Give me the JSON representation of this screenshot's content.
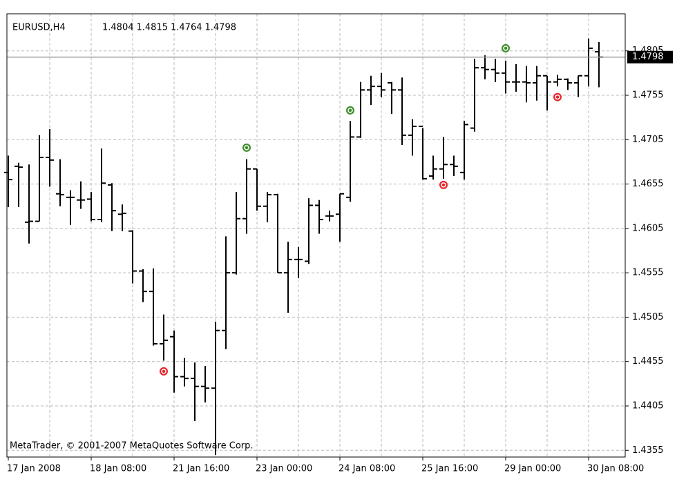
{
  "chart_data": {
    "type": "ohlc",
    "title": "EURUSD,H4",
    "annotation": "MetaTrader, © 2001-2007 MetaQuotes Software Corp.",
    "categories": [
      "17 Jan 2008",
      null,
      null,
      null,
      null,
      null,
      null,
      null,
      "18 Jan 08:00",
      null,
      null,
      null,
      null,
      null,
      null,
      null,
      "21 Jan 16:00",
      null,
      null,
      null,
      null,
      null,
      null,
      null,
      "23 Jan 00:00",
      null,
      null,
      null,
      null,
      null,
      null,
      null,
      "24 Jan 08:00",
      null,
      null,
      null,
      null,
      null,
      null,
      null,
      "25 Jan 16:00",
      null,
      null,
      null,
      null,
      null,
      null,
      null,
      "29 Jan 00:00",
      null,
      null,
      null,
      null,
      null,
      null,
      null,
      "30 Jan 08:00",
      null
    ],
    "open": [
      1.4668,
      1.4675,
      1.4612,
      1.4613,
      1.4685,
      1.4644,
      1.464,
      1.4637,
      1.4638,
      1.4615,
      1.4654,
      1.4621,
      1.4602,
      1.4557,
      1.4534,
      1.4475,
      1.4483,
      1.4438,
      1.4436,
      1.4427,
      1.4425,
      1.449,
      1.4555,
      1.4616,
      1.4672,
      1.463,
      1.4643,
      1.4555,
      1.457,
      1.4568,
      1.4631,
      1.4619,
      1.4621,
      1.464,
      1.4708,
      1.4761,
      1.4765,
      1.4769,
      1.4761,
      1.471,
      1.472,
      1.4664,
      1.4672,
      1.4677,
      1.4668,
      1.4718,
      1.4786,
      1.4784,
      1.478,
      1.477,
      1.477,
      1.4769,
      1.4777,
      1.477,
      1.4773,
      1.4769,
      1.4777,
      1.4804
    ],
    "high": [
      1.4687,
      1.4679,
      1.4677,
      1.471,
      1.4717,
      1.4683,
      1.4648,
      1.4658,
      1.4646,
      1.4695,
      1.4656,
      1.4632,
      1.4603,
      1.4559,
      1.456,
      1.4508,
      1.449,
      1.4459,
      1.4454,
      1.445,
      1.45,
      1.4596,
      1.4646,
      1.4683,
      1.4672,
      1.4646,
      1.4644,
      1.459,
      1.4584,
      1.4639,
      1.4637,
      1.4625,
      1.4644,
      1.4726,
      1.477,
      1.4777,
      1.478,
      1.477,
      1.4775,
      1.4728,
      1.4718,
      1.4687,
      1.4708,
      1.4687,
      1.4726,
      1.4796,
      1.48,
      1.4796,
      1.4794,
      1.479,
      1.4788,
      1.4788,
      1.4777,
      1.4778,
      1.4774,
      1.4777,
      1.4819,
      1.4815
    ],
    "low": [
      1.4629,
      1.4629,
      1.4588,
      1.4613,
      1.4652,
      1.463,
      1.4609,
      1.4627,
      1.4613,
      1.4612,
      1.4602,
      1.4602,
      1.4543,
      1.4522,
      1.4473,
      1.4456,
      1.442,
      1.4427,
      1.4388,
      1.4409,
      1.435,
      1.4469,
      1.4553,
      1.4599,
      1.4625,
      1.4612,
      1.4555,
      1.451,
      1.4549,
      1.4565,
      1.4599,
      1.4613,
      1.459,
      1.4635,
      1.4707,
      1.4744,
      1.4753,
      1.4734,
      1.4699,
      1.4687,
      1.466,
      1.466,
      1.4661,
      1.4664,
      1.466,
      1.4714,
      1.4773,
      1.477,
      1.4757,
      1.4759,
      1.4747,
      1.4749,
      1.4738,
      1.4765,
      1.4761,
      1.4753,
      1.4765,
      1.4764
    ],
    "close": [
      1.466,
      1.4674,
      1.4613,
      1.4685,
      1.4682,
      1.4643,
      1.464,
      1.4637,
      1.4615,
      1.4656,
      1.4625,
      1.4622,
      1.4557,
      1.4534,
      1.4475,
      1.4479,
      1.4438,
      1.4436,
      1.4427,
      1.4425,
      1.449,
      1.4555,
      1.4616,
      1.4672,
      1.463,
      1.4643,
      1.4555,
      1.457,
      1.457,
      1.4631,
      1.4615,
      1.4619,
      1.4644,
      1.4708,
      1.4761,
      1.4765,
      1.4761,
      1.4761,
      1.471,
      1.472,
      1.4661,
      1.4672,
      1.4677,
      1.4675,
      1.4722,
      1.4786,
      1.4784,
      1.478,
      1.477,
      1.477,
      1.4769,
      1.4777,
      1.477,
      1.4773,
      1.4769,
      1.4777,
      1.4808,
      1.4798
    ],
    "color": "#000000",
    "signals": [
      {
        "index": 15,
        "value": 1.4444,
        "color": "#e8262b"
      },
      {
        "index": 23,
        "value": 1.4696,
        "color": "#3d8f2a"
      },
      {
        "index": 33,
        "value": 1.4738,
        "color": "#3d8f2a"
      },
      {
        "index": 42,
        "value": 1.4654,
        "color": "#e8262b"
      },
      {
        "index": 48,
        "value": 1.4808,
        "color": "#3d8f2a"
      },
      {
        "index": 53,
        "value": 1.4753,
        "color": "#e8262b"
      }
    ],
    "ylim": [
      1.4349,
      1.4846
    ],
    "yticks": [
      1.4355,
      1.4405,
      1.4455,
      1.4505,
      1.4555,
      1.4605,
      1.4655,
      1.4705,
      1.4755,
      1.4805
    ],
    "grid": true
  }
}
